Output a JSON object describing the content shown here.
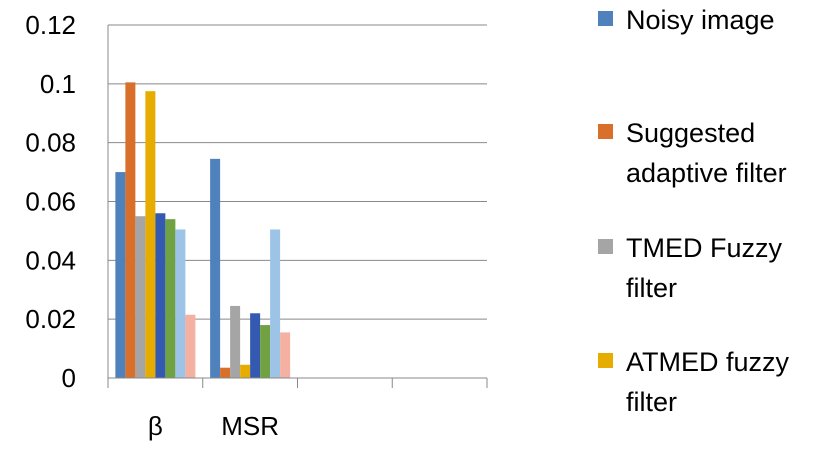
{
  "chart_data": {
    "type": "bar",
    "categories": [
      "β",
      "MSR",
      "",
      ""
    ],
    "series": [
      {
        "name": "Noisy image",
        "color": "#4F81BD",
        "values": [
          0.07,
          0.0745,
          null,
          null
        ]
      },
      {
        "name": "Suggested adaptive filter",
        "color": "#D8702B",
        "values": [
          0.1005,
          0.0035,
          null,
          null
        ]
      },
      {
        "name": "TMED Fuzzy filter",
        "color": "#A5A5A5",
        "values": [
          0.055,
          0.0245,
          null,
          null
        ]
      },
      {
        "name": "ATMED fuzzy filter",
        "color": "#E6AC00",
        "values": [
          0.0975,
          0.0045,
          null,
          null
        ]
      },
      {
        "name": "",
        "color": "#3459B0",
        "values": [
          0.056,
          0.022,
          null,
          null
        ]
      },
      {
        "name": "",
        "color": "#70A142",
        "values": [
          0.054,
          0.018,
          null,
          null
        ]
      },
      {
        "name": "",
        "color": "#9DC3E6",
        "values": [
          0.0505,
          0.0505,
          null,
          null
        ]
      },
      {
        "name": "",
        "color": "#F4B0A0",
        "values": [
          0.0215,
          0.0155,
          null,
          null
        ]
      }
    ],
    "yticks": [
      "0",
      "0.02",
      "0.04",
      "0.06",
      "0.08",
      "0.1",
      "0.12"
    ],
    "ylim": [
      0,
      0.12
    ],
    "grid": true,
    "legend_placement": "right"
  }
}
